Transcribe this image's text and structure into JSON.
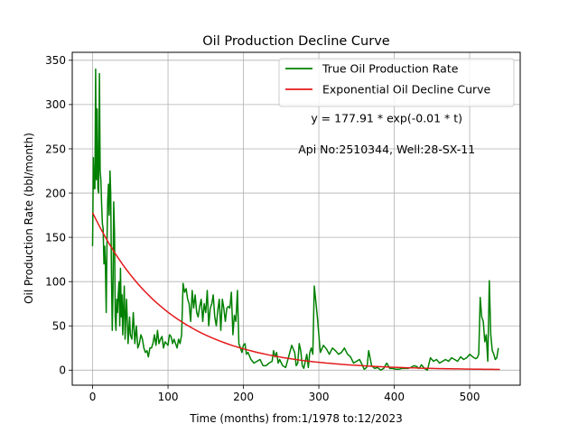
{
  "chart_data": {
    "type": "line",
    "title": "Oil Production Decline Curve",
    "xlabel": "Time (months) from:1/1978 to:12/2023",
    "ylabel": "Oil Production Rate (bbl/month)",
    "xlim": [
      -27,
      567
    ],
    "ylim": [
      -17,
      359
    ],
    "xticks": [
      0,
      100,
      200,
      300,
      400,
      500
    ],
    "yticks": [
      0,
      50,
      100,
      150,
      200,
      250,
      300,
      350
    ],
    "grid": true,
    "legend_position": "top-right",
    "annotations": [
      {
        "text": "y = 177.91 * exp(-0.01 * t)",
        "x": 390,
        "y": 280
      },
      {
        "text": "Api No:2510344, Well:28-SX-11",
        "x": 390,
        "y": 245
      }
    ],
    "series": [
      {
        "name": "True Oil Production Rate",
        "color": "#008000",
        "x": [
          0,
          1,
          2,
          3,
          4,
          5,
          6,
          7,
          8,
          9,
          10,
          11,
          12,
          13,
          14,
          15,
          16,
          17,
          18,
          19,
          20,
          21,
          22,
          23,
          24,
          25,
          26,
          27,
          28,
          29,
          30,
          31,
          32,
          33,
          34,
          35,
          36,
          37,
          38,
          39,
          40,
          41,
          42,
          43,
          44,
          45,
          46,
          47,
          48,
          49,
          50,
          52,
          54,
          56,
          58,
          60,
          62,
          64,
          66,
          68,
          70,
          72,
          74,
          76,
          78,
          80,
          82,
          84,
          86,
          88,
          90,
          92,
          94,
          96,
          98,
          100,
          102,
          104,
          106,
          108,
          110,
          112,
          114,
          116,
          118,
          120,
          122,
          124,
          126,
          128,
          130,
          132,
          134,
          136,
          138,
          140,
          142,
          144,
          146,
          148,
          150,
          152,
          154,
          156,
          158,
          160,
          162,
          164,
          166,
          168,
          170,
          172,
          174,
          176,
          178,
          180,
          182,
          184,
          186,
          188,
          190,
          192,
          194,
          196,
          198,
          200,
          202,
          204,
          206,
          210,
          214,
          218,
          222,
          226,
          230,
          234,
          238,
          240,
          242,
          244,
          246,
          248,
          252,
          256,
          260,
          264,
          268,
          270,
          272,
          274,
          276,
          278,
          280,
          284,
          286,
          288,
          290,
          292,
          294,
          298,
          302,
          306,
          310,
          314,
          318,
          322,
          326,
          330,
          334,
          338,
          342,
          346,
          350,
          354,
          358,
          360,
          362,
          364,
          366,
          370,
          374,
          378,
          382,
          386,
          390,
          394,
          398,
          402,
          406,
          410,
          414,
          418,
          422,
          426,
          430,
          432,
          434,
          436,
          440,
          444,
          448,
          452,
          456,
          460,
          464,
          468,
          472,
          476,
          480,
          484,
          488,
          492,
          496,
          500,
          504,
          508,
          510,
          512,
          514,
          516,
          518,
          520,
          522,
          524,
          526,
          528,
          530,
          532,
          534,
          536,
          538
        ],
        "values": [
          140,
          240,
          205,
          205,
          340,
          215,
          295,
          205,
          200,
          335,
          225,
          215,
          185,
          165,
          160,
          120,
          140,
          120,
          65,
          140,
          190,
          210,
          175,
          225,
          200,
          110,
          45,
          90,
          190,
          155,
          60,
          45,
          80,
          65,
          85,
          100,
          50,
          115,
          60,
          85,
          40,
          70,
          95,
          35,
          60,
          80,
          55,
          30,
          45,
          60,
          40,
          35,
          65,
          30,
          50,
          25,
          30,
          40,
          35,
          25,
          20,
          22,
          15,
          25,
          25,
          30,
          40,
          28,
          45,
          30,
          35,
          38,
          25,
          32,
          30,
          28,
          40,
          38,
          30,
          35,
          30,
          25,
          35,
          30,
          40,
          98,
          88,
          92,
          80,
          75,
          55,
          90,
          70,
          85,
          65,
          60,
          72,
          80,
          55,
          75,
          65,
          90,
          50,
          70,
          75,
          85,
          60,
          50,
          68,
          80,
          45,
          80,
          70,
          55,
          70,
          72,
          70,
          88,
          40,
          62,
          55,
          90,
          30,
          25,
          20,
          28,
          30,
          18,
          20,
          12,
          8,
          10,
          12,
          5,
          5,
          8,
          10,
          22,
          15,
          20,
          8,
          12,
          5,
          3,
          15,
          28,
          20,
          5,
          8,
          30,
          22,
          5,
          2,
          18,
          3,
          20,
          25,
          18,
          95,
          60,
          20,
          28,
          24,
          18,
          25,
          22,
          18,
          20,
          25,
          18,
          15,
          8,
          10,
          12,
          5,
          1,
          2,
          4,
          22,
          5,
          2,
          3,
          0,
          2,
          8,
          2,
          2,
          1,
          1,
          2,
          2,
          2,
          3,
          5,
          4,
          2,
          3,
          6,
          2,
          0,
          14,
          10,
          12,
          8,
          10,
          12,
          10,
          14,
          12,
          10,
          15,
          12,
          14,
          18,
          15,
          13,
          14,
          18,
          82,
          60,
          55,
          32,
          40,
          10,
          101,
          40,
          22,
          18,
          12,
          14,
          25
        ]
      },
      {
        "name": "Exponential Oil Decline Curve",
        "color": "#e41a1c",
        "fit": {
          "a": 177.91,
          "b": 0.01
        },
        "x_range": [
          0,
          540
        ]
      }
    ]
  }
}
